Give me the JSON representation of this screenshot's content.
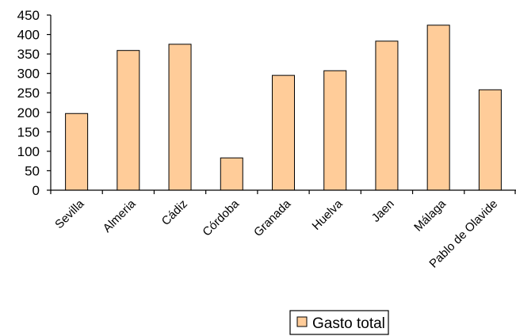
{
  "chart_data": {
    "type": "bar",
    "categories": [
      "Sevilla",
      "Almeria",
      "Cádiz",
      "Córdoba",
      "Granada",
      "Huelva",
      "Jaen",
      "Málaga",
      "Pablo de Olavide"
    ],
    "series": [
      {
        "name": "Gasto total",
        "values": [
          197,
          359,
          375,
          83,
          295,
          307,
          383,
          424,
          258
        ],
        "color": "#FFCC99"
      }
    ],
    "ylim": [
      0,
      450
    ],
    "yticks": [
      0,
      50,
      100,
      150,
      200,
      250,
      300,
      350,
      400,
      450
    ],
    "grid": false,
    "legend_position": "bottom",
    "title": "",
    "xlabel": "",
    "ylabel": ""
  }
}
